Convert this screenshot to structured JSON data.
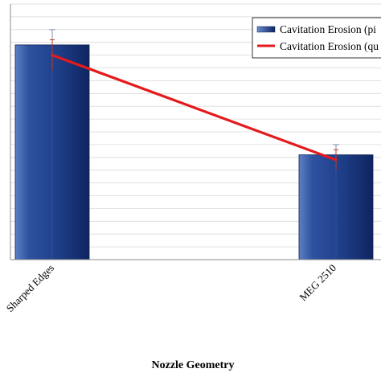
{
  "chart_data": {
    "type": "bar",
    "categories": [
      "Sharped Edges",
      "MEG 2510"
    ],
    "xlabel": "Nozzle Geometry",
    "ylabel": "",
    "title": "",
    "ylim": [
      0,
      10
    ],
    "grid": true,
    "legend_position": "top-right",
    "series": [
      {
        "name": "Cavitation Erosion (pi",
        "kind": "bar",
        "values": [
          8.4,
          4.1
        ],
        "errors": [
          0.6,
          0.4
        ],
        "color": "#1f3f86"
      },
      {
        "name": "Cavitation Erosion (qu",
        "kind": "line",
        "values": [
          8.0,
          3.9
        ],
        "errors": [
          0.6,
          0.4
        ],
        "color": "#e41a1c"
      }
    ]
  }
}
